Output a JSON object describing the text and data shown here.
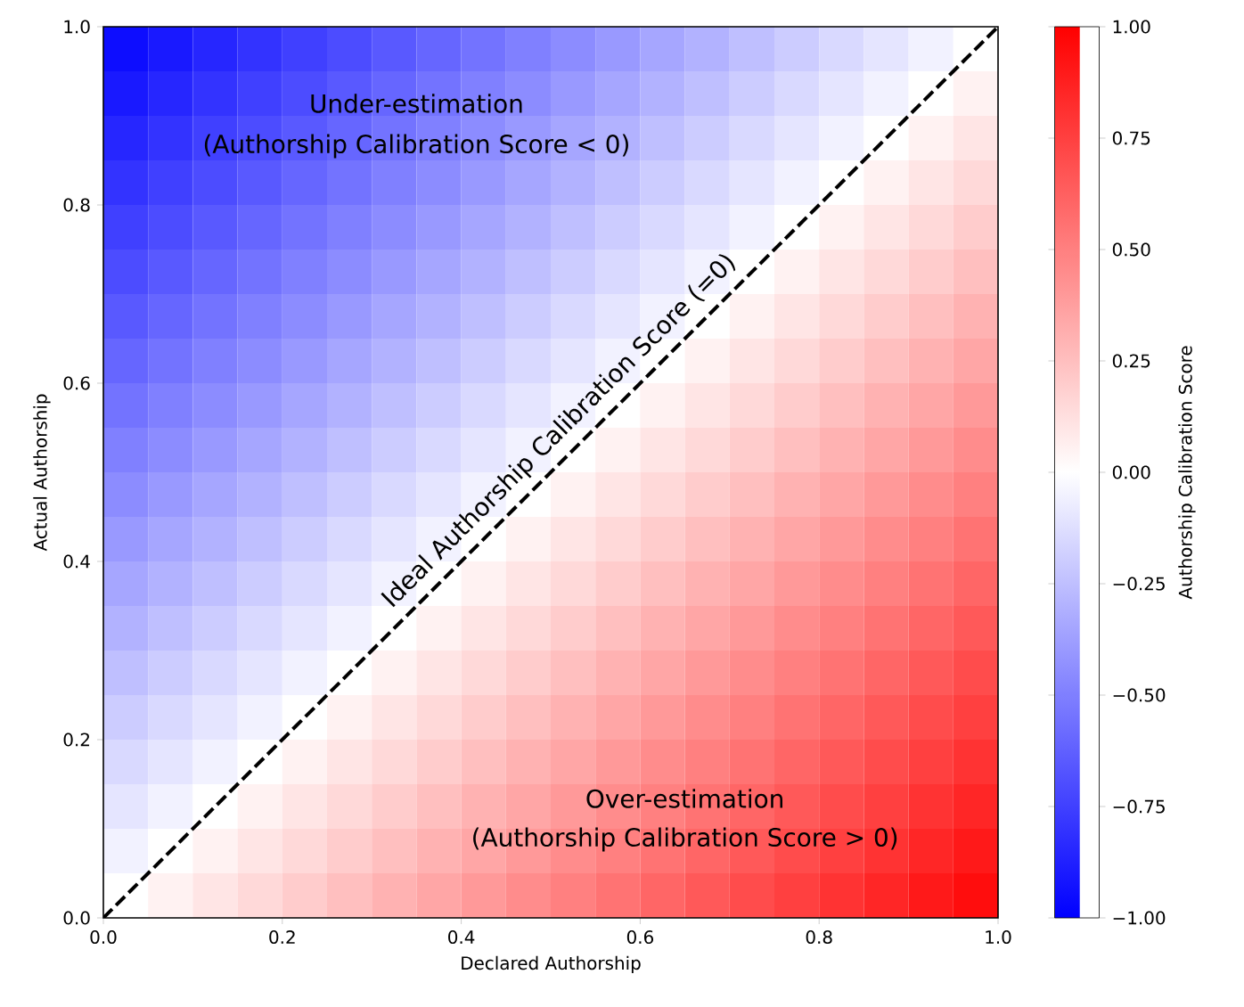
{
  "chart_data": {
    "type": "heatmap",
    "xlabel": "Declared Authorship",
    "ylabel": "Actual Authorship",
    "clabel": "Authorship Calibration Score",
    "x": [
      0.025,
      0.075,
      0.125,
      0.175,
      0.225,
      0.275,
      0.325,
      0.375,
      0.425,
      0.475,
      0.525,
      0.575,
      0.625,
      0.675,
      0.725,
      0.775,
      0.825,
      0.875,
      0.925,
      0.975
    ],
    "y": [
      0.975,
      0.925,
      0.875,
      0.825,
      0.775,
      0.725,
      0.675,
      0.625,
      0.575,
      0.525,
      0.475,
      0.425,
      0.375,
      0.325,
      0.275,
      0.225,
      0.175,
      0.125,
      0.075,
      0.025
    ],
    "cells": [
      [
        -0.95,
        -0.9,
        -0.85,
        -0.8,
        -0.75,
        -0.7,
        -0.65,
        -0.6,
        -0.55,
        -0.5,
        -0.45,
        -0.4,
        -0.35,
        -0.3,
        -0.25,
        -0.2,
        -0.15,
        -0.1,
        -0.05,
        0
      ],
      [
        -0.9,
        -0.85,
        -0.8,
        -0.75,
        -0.7,
        -0.65,
        -0.6,
        -0.55,
        -0.5,
        -0.45,
        -0.4,
        -0.35,
        -0.3,
        -0.25,
        -0.2,
        -0.15,
        -0.1,
        -0.05,
        0,
        0.05
      ],
      [
        -0.85,
        -0.8,
        -0.75,
        -0.7,
        -0.65,
        -0.6,
        -0.55,
        -0.5,
        -0.45,
        -0.4,
        -0.35,
        -0.3,
        -0.25,
        -0.2,
        -0.15,
        -0.1,
        -0.05,
        0,
        0.05,
        0.1
      ],
      [
        -0.8,
        -0.75,
        -0.7,
        -0.65,
        -0.6,
        -0.55,
        -0.5,
        -0.45,
        -0.4,
        -0.35,
        -0.3,
        -0.25,
        -0.2,
        -0.15,
        -0.1,
        -0.05,
        0,
        0.05,
        0.1,
        0.15
      ],
      [
        -0.75,
        -0.7,
        -0.65,
        -0.6,
        -0.55,
        -0.5,
        -0.45,
        -0.4,
        -0.35,
        -0.3,
        -0.25,
        -0.2,
        -0.15,
        -0.1,
        -0.05,
        0,
        0.05,
        0.1,
        0.15,
        0.2
      ],
      [
        -0.7,
        -0.65,
        -0.6,
        -0.55,
        -0.5,
        -0.45,
        -0.4,
        -0.35,
        -0.3,
        -0.25,
        -0.2,
        -0.15,
        -0.1,
        -0.05,
        0,
        0.05,
        0.1,
        0.15,
        0.2,
        0.25
      ],
      [
        -0.65,
        -0.6,
        -0.55,
        -0.5,
        -0.45,
        -0.4,
        -0.35,
        -0.3,
        -0.25,
        -0.2,
        -0.15,
        -0.1,
        -0.05,
        0,
        0.05,
        0.1,
        0.15,
        0.2,
        0.25,
        0.3
      ],
      [
        -0.6,
        -0.55,
        -0.5,
        -0.45,
        -0.4,
        -0.35,
        -0.3,
        -0.25,
        -0.2,
        -0.15,
        -0.1,
        -0.05,
        0,
        0.05,
        0.1,
        0.15,
        0.2,
        0.25,
        0.3,
        0.35
      ],
      [
        -0.55,
        -0.5,
        -0.45,
        -0.4,
        -0.35,
        -0.3,
        -0.25,
        -0.2,
        -0.15,
        -0.1,
        -0.05,
        0,
        0.05,
        0.1,
        0.15,
        0.2,
        0.25,
        0.3,
        0.35,
        0.4
      ],
      [
        -0.5,
        -0.45,
        -0.4,
        -0.35,
        -0.3,
        -0.25,
        -0.2,
        -0.15,
        -0.1,
        -0.05,
        0,
        0.05,
        0.1,
        0.15,
        0.2,
        0.25,
        0.3,
        0.35,
        0.4,
        0.45
      ],
      [
        -0.45,
        -0.4,
        -0.35,
        -0.3,
        -0.25,
        -0.2,
        -0.15,
        -0.1,
        -0.05,
        0,
        0.05,
        0.1,
        0.15,
        0.2,
        0.25,
        0.3,
        0.35,
        0.4,
        0.45,
        0.5
      ],
      [
        -0.4,
        -0.35,
        -0.3,
        -0.25,
        -0.2,
        -0.15,
        -0.1,
        -0.05,
        0,
        0.05,
        0.1,
        0.15,
        0.2,
        0.25,
        0.3,
        0.35,
        0.4,
        0.45,
        0.5,
        0.55
      ],
      [
        -0.35,
        -0.3,
        -0.25,
        -0.2,
        -0.15,
        -0.1,
        -0.05,
        0,
        0.05,
        0.1,
        0.15,
        0.2,
        0.25,
        0.3,
        0.35,
        0.4,
        0.45,
        0.5,
        0.55,
        0.6
      ],
      [
        -0.3,
        -0.25,
        -0.2,
        -0.15,
        -0.1,
        -0.05,
        0,
        0.05,
        0.1,
        0.15,
        0.2,
        0.25,
        0.3,
        0.35,
        0.4,
        0.45,
        0.5,
        0.55,
        0.6,
        0.65
      ],
      [
        -0.25,
        -0.2,
        -0.15,
        -0.1,
        -0.05,
        0,
        0.05,
        0.1,
        0.15,
        0.2,
        0.25,
        0.3,
        0.35,
        0.4,
        0.45,
        0.5,
        0.55,
        0.6,
        0.65,
        0.7
      ],
      [
        -0.2,
        -0.15,
        -0.1,
        -0.05,
        0,
        0.05,
        0.1,
        0.15,
        0.2,
        0.25,
        0.3,
        0.35,
        0.4,
        0.45,
        0.5,
        0.55,
        0.6,
        0.65,
        0.7,
        0.75
      ],
      [
        -0.15,
        -0.1,
        -0.05,
        0,
        0.05,
        0.1,
        0.15,
        0.2,
        0.25,
        0.3,
        0.35,
        0.4,
        0.45,
        0.5,
        0.55,
        0.6,
        0.65,
        0.7,
        0.75,
        0.8
      ],
      [
        -0.1,
        -0.05,
        0,
        0.05,
        0.1,
        0.15,
        0.2,
        0.25,
        0.3,
        0.35,
        0.4,
        0.45,
        0.5,
        0.55,
        0.6,
        0.65,
        0.7,
        0.75,
        0.8,
        0.85
      ],
      [
        -0.05,
        0,
        0.05,
        0.1,
        0.15,
        0.2,
        0.25,
        0.3,
        0.35,
        0.4,
        0.45,
        0.5,
        0.55,
        0.6,
        0.65,
        0.7,
        0.75,
        0.8,
        0.85,
        0.9
      ],
      [
        0,
        0.05,
        0.1,
        0.15,
        0.2,
        0.25,
        0.3,
        0.35,
        0.4,
        0.45,
        0.5,
        0.55,
        0.6,
        0.65,
        0.7,
        0.75,
        0.8,
        0.85,
        0.9,
        0.95
      ]
    ],
    "clim": [
      -1,
      1
    ],
    "cticks": [
      {
        "value": -1,
        "label": "−1.00"
      },
      {
        "value": -0.75,
        "label": "−0.75"
      },
      {
        "value": -0.5,
        "label": "−0.50"
      },
      {
        "value": -0.25,
        "label": "−0.25"
      },
      {
        "value": 0,
        "label": "0.00"
      },
      {
        "value": 0.25,
        "label": "0.25"
      },
      {
        "value": 0.5,
        "label": "0.50"
      },
      {
        "value": 0.75,
        "label": "0.75"
      },
      {
        "value": 1,
        "label": "1.00"
      }
    ],
    "xlim": [
      0,
      1
    ],
    "ylim": [
      0,
      1
    ],
    "xticks": [
      {
        "value": 0,
        "label": "0.0"
      },
      {
        "value": 0.2,
        "label": "0.2"
      },
      {
        "value": 0.4,
        "label": "0.4"
      },
      {
        "value": 0.6,
        "label": "0.6"
      },
      {
        "value": 0.8,
        "label": "0.8"
      },
      {
        "value": 1,
        "label": "1.0"
      }
    ],
    "yticks": [
      {
        "value": 0,
        "label": "0.0"
      },
      {
        "value": 0.2,
        "label": "0.2"
      },
      {
        "value": 0.4,
        "label": "0.4"
      },
      {
        "value": 0.6,
        "label": "0.6"
      },
      {
        "value": 0.8,
        "label": "0.8"
      },
      {
        "value": 1,
        "label": "1.0"
      }
    ],
    "series": [
      {
        "type": "line",
        "x": [
          0,
          1
        ],
        "values": [
          0,
          1
        ],
        "color": "#000000",
        "line_style": "dashed"
      }
    ],
    "annotations": [
      "Under-estimation",
      "(Authorship Calibration Score < 0)",
      "Ideal Authorship Calibration Score (=0)",
      "Over-estimation",
      "(Authorship Calibration Score > 0)"
    ]
  }
}
